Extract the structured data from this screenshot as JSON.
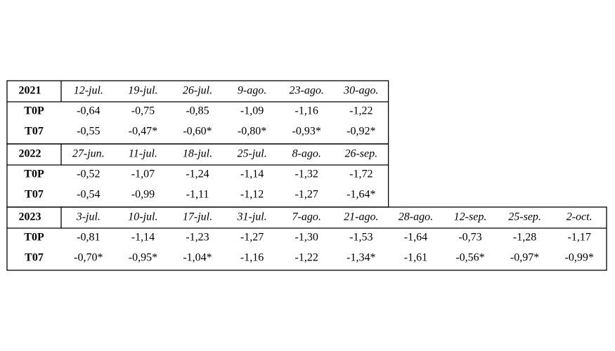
{
  "table": {
    "blocks": [
      {
        "year": "2021",
        "dates": [
          "12-jul.",
          "19-jul.",
          "26-jul.",
          "9-ago.",
          "23-ago.",
          "30-ago."
        ],
        "rows": [
          {
            "label": "T0P",
            "values": [
              "-0,64",
              "-0,75",
              "-0,85",
              "-1,09",
              "-1,16",
              "-1,22"
            ]
          },
          {
            "label": "T07",
            "values": [
              "-0,55",
              "-0,47*",
              "-0,60*",
              "-0,80*",
              "-0,93*",
              "-0,92*"
            ]
          }
        ]
      },
      {
        "year": "2022",
        "dates": [
          "27-jun.",
          "11-jul.",
          "18-jul.",
          "25-jul.",
          "8-ago.",
          "26-sep."
        ],
        "rows": [
          {
            "label": "T0P",
            "values": [
              "-0,52",
              "-1,07",
              "-1,24",
              "-1,14",
              "-1,32",
              "-1,72"
            ]
          },
          {
            "label": "T07",
            "values": [
              "-0,54",
              "-0,99",
              "-1,11",
              "-1,12",
              "-1,27",
              "-1,64*"
            ]
          }
        ]
      },
      {
        "year": "2023",
        "dates": [
          "3-jul.",
          "10-jul.",
          "17-jul.",
          "31-jul.",
          "7-ago.",
          "21-ago.",
          "28-ago.",
          "12-sep.",
          "25-sep.",
          "2-oct."
        ],
        "rows": [
          {
            "label": "T0P",
            "values": [
              "-0,81",
              "-1,14",
              "-1,23",
              "-1,27",
              "-1,30",
              "-1,53",
              "-1,64",
              "-0,73",
              "-1,28",
              "-1,17"
            ]
          },
          {
            "label": "T07",
            "values": [
              "-0,70*",
              "-0,95*",
              "-1,04*",
              "-1,16",
              "-1,22",
              "-1,34*",
              "-1,61",
              "-0,56*",
              "-0,97*",
              "-0,99*"
            ]
          }
        ]
      }
    ]
  }
}
